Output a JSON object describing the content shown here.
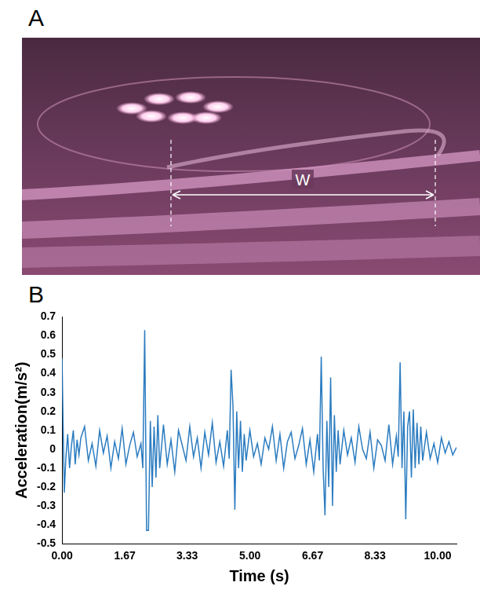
{
  "panel_a": {
    "label": "A",
    "annotation": "W"
  },
  "panel_b": {
    "label": "B"
  },
  "chart_data": {
    "type": "line",
    "x_label": "Time (s)",
    "y_label": "Acceleration(m/s²)",
    "x": [
      0,
      0.03,
      0.06,
      0.1,
      0.15,
      0.2,
      0.25,
      0.3,
      0.35,
      0.4,
      0.45,
      0.5,
      0.6,
      0.7,
      0.8,
      0.9,
      1.0,
      1.1,
      1.2,
      1.3,
      1.4,
      1.5,
      1.6,
      1.7,
      1.8,
      1.9,
      2.0,
      2.1,
      2.15,
      2.2,
      2.25,
      2.3,
      2.35,
      2.4,
      2.45,
      2.5,
      2.55,
      2.6,
      2.7,
      2.8,
      2.9,
      3.0,
      3.1,
      3.2,
      3.3,
      3.4,
      3.5,
      3.6,
      3.7,
      3.8,
      3.9,
      4.0,
      4.1,
      4.2,
      4.3,
      4.4,
      4.45,
      4.5,
      4.55,
      4.6,
      4.65,
      4.7,
      4.75,
      4.8,
      4.85,
      4.9,
      5.0,
      5.1,
      5.2,
      5.3,
      5.4,
      5.5,
      5.6,
      5.7,
      5.8,
      5.9,
      6.0,
      6.1,
      6.2,
      6.3,
      6.4,
      6.5,
      6.6,
      6.7,
      6.8,
      6.85,
      6.9,
      6.95,
      7.0,
      7.05,
      7.1,
      7.15,
      7.2,
      7.25,
      7.3,
      7.35,
      7.4,
      7.5,
      7.6,
      7.7,
      7.8,
      7.9,
      8.0,
      8.1,
      8.2,
      8.3,
      8.4,
      8.5,
      8.6,
      8.7,
      8.8,
      8.9,
      8.95,
      9.0,
      9.05,
      9.1,
      9.15,
      9.2,
      9.25,
      9.3,
      9.35,
      9.4,
      9.45,
      9.5,
      9.55,
      9.6,
      9.7,
      9.8,
      9.9,
      10.0,
      10.1,
      10.2,
      10.3,
      10.4,
      10.5
    ],
    "series": [
      {
        "name": "Acceleration",
        "color": "#2b7cc0",
        "values": [
          0.48,
          0.1,
          -0.23,
          -0.05,
          0.08,
          -0.1,
          0.02,
          0.1,
          -0.08,
          0.05,
          -0.03,
          0.06,
          0.12,
          -0.06,
          0.03,
          -0.09,
          0.1,
          -0.02,
          0.07,
          -0.1,
          0.04,
          -0.05,
          0.11,
          -0.08,
          0.02,
          0.09,
          -0.04,
          0.03,
          -0.1,
          0.63,
          -0.43,
          -0.43,
          0.15,
          -0.2,
          0.12,
          -0.15,
          0.18,
          -0.1,
          0.13,
          -0.08,
          0.05,
          -0.12,
          0.1,
          0.02,
          -0.06,
          0.12,
          -0.04,
          0.06,
          -0.1,
          0.09,
          -0.03,
          0.14,
          -0.07,
          0.04,
          -0.09,
          0.1,
          -0.05,
          0.42,
          0.23,
          -0.32,
          0.2,
          -0.1,
          0.15,
          -0.12,
          0.08,
          -0.06,
          0.1,
          -0.04,
          0.03,
          -0.08,
          0.06,
          0,
          0.12,
          -0.06,
          0.08,
          -0.1,
          0.04,
          0.09,
          -0.05,
          0.02,
          0.11,
          -0.08,
          0.05,
          -0.12,
          0.08,
          -0.06,
          0.49,
          -0.1,
          -0.35,
          0.15,
          -0.2,
          0.38,
          -0.3,
          0.18,
          -0.12,
          0.1,
          -0.08,
          0.1,
          -0.03,
          0.06,
          -0.07,
          0.12,
          0,
          -0.05,
          0.09,
          -0.1,
          0.05,
          0.02,
          -0.06,
          0.13,
          -0.08,
          0.07,
          -0.04,
          0.46,
          -0.1,
          0.2,
          -0.37,
          0.12,
          0.2,
          -0.15,
          0.21,
          -0.1,
          0.14,
          -0.08,
          0.12,
          -0.06,
          0.09,
          -0.05,
          0.03,
          -0.07,
          0.06,
          -0.02,
          0.04,
          -0.03,
          0.01
        ]
      }
    ],
    "xlim": [
      0,
      10.5
    ],
    "xticks": [
      {
        "value": 0,
        "label": "0.00"
      },
      1.67,
      3.33,
      {
        "value": 5,
        "label": "5.00"
      },
      6.67,
      8.33,
      {
        "value": 10,
        "label": "10.00"
      }
    ],
    "ylim": [
      -0.5,
      0.7
    ],
    "yticks": [
      -0.5,
      -0.4,
      -0.3,
      -0.2,
      -0.1,
      0,
      0.1,
      0.2,
      0.3,
      0.4,
      0.5,
      0.6,
      0.7
    ],
    "grid": false
  }
}
